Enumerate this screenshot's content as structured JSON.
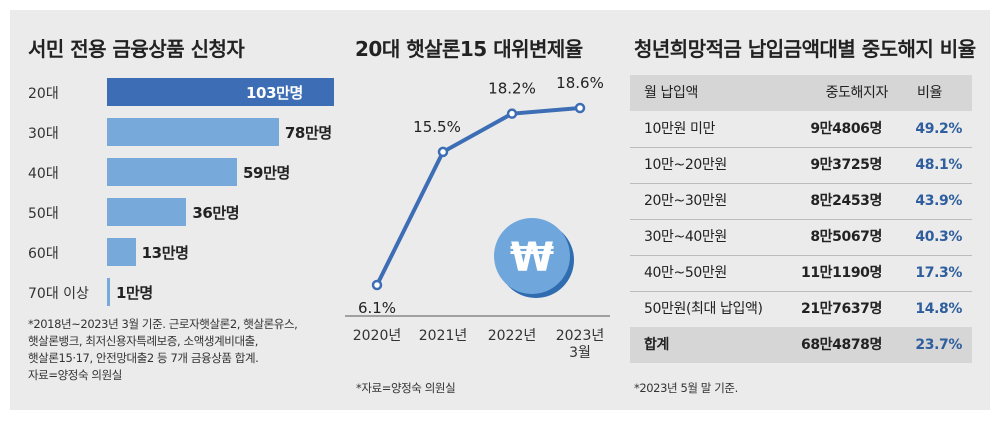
{
  "colors": {
    "bar_dark": "#3d6eb5",
    "bar_light": "#78a9db",
    "line": "#3d6eb5",
    "pct_blue": "#2e5e9e"
  },
  "panel1": {
    "title": "서민 전용 금융상품 신청자",
    "notes": [
      "*2018년~2023년 3월 기준. 근로자햇살론2, 햇살론유스,",
      "햇살론뱅크, 최저신용자특례보증, 소액생계비대출,",
      "햇살론15·17, 안전망대출2 등 7개 금융상품 합계.",
      "자료=양정숙 의원실"
    ]
  },
  "panel2": {
    "title": "20대 햇살론15 대위변제율",
    "note": "*자료=양정숙 의원실",
    "coin_symbol": "₩"
  },
  "panel3": {
    "title": "청년희망적금 납입금액대별 중도해지 비율",
    "headers": [
      "월 납입액",
      "중도해지자",
      "비율"
    ],
    "rows": [
      [
        "10만원 미만",
        "9만4806명",
        "49.2%"
      ],
      [
        "10만~20만원",
        "9만3725명",
        "48.1%"
      ],
      [
        "20만~30만원",
        "8만2453명",
        "43.9%"
      ],
      [
        "30만~40만원",
        "8만5067명",
        "40.3%"
      ],
      [
        "40만~50만원",
        "11만1190명",
        "17.3%"
      ],
      [
        "50만원(최대 납입액)",
        "21만7637명",
        "14.8%"
      ]
    ],
    "total": [
      "합계",
      "68만4878명",
      "23.7%"
    ],
    "note": "*2023년 5월 말 기준."
  },
  "chart_data": [
    {
      "type": "bar",
      "orientation": "horizontal",
      "title": "서민 전용 금융상품 신청자",
      "categories": [
        "20대",
        "30대",
        "40대",
        "50대",
        "60대",
        "70대 이상"
      ],
      "values": [
        103,
        78,
        59,
        36,
        13,
        1
      ],
      "value_labels": [
        "103만명",
        "78만명",
        "59만명",
        "36만명",
        "13만명",
        "1만명"
      ],
      "unit": "만명",
      "xlim": [
        0,
        103
      ]
    },
    {
      "type": "line",
      "title": "20대 햇살론15 대위변제율",
      "categories": [
        "2020년",
        "2021년",
        "2022년",
        "2023년 3월"
      ],
      "values": [
        6.1,
        15.5,
        18.2,
        18.6
      ],
      "value_labels": [
        "6.1%",
        "15.5%",
        "18.2%",
        "18.6%"
      ],
      "unit": "%",
      "ylim": [
        6.1,
        18.6
      ]
    }
  ]
}
